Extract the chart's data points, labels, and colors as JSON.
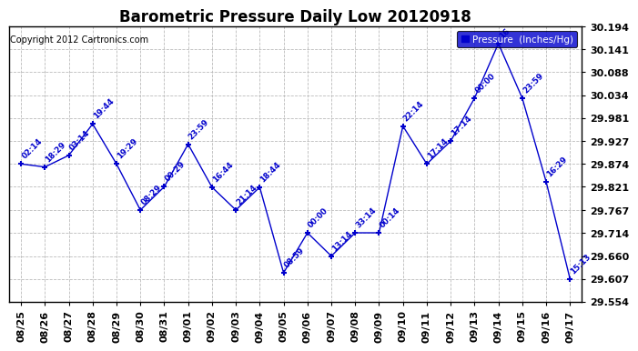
{
  "title": "Barometric Pressure Daily Low 20120918",
  "copyright": "Copyright 2012 Cartronics.com",
  "legend_label": "Pressure  (Inches/Hg)",
  "ylim": [
    29.554,
    30.194
  ],
  "yticks": [
    29.554,
    29.607,
    29.66,
    29.714,
    29.767,
    29.821,
    29.874,
    29.927,
    29.981,
    30.034,
    30.088,
    30.141,
    30.194
  ],
  "dates": [
    "08/25",
    "08/26",
    "08/27",
    "08/28",
    "08/29",
    "08/30",
    "08/31",
    "09/01",
    "09/02",
    "09/03",
    "09/04",
    "09/05",
    "09/06",
    "09/07",
    "09/08",
    "09/09",
    "09/10",
    "09/11",
    "09/12",
    "09/13",
    "09/14",
    "09/15",
    "09/16",
    "09/17"
  ],
  "values": [
    29.874,
    29.867,
    29.894,
    29.967,
    29.874,
    29.767,
    29.821,
    29.92,
    29.82,
    29.767,
    29.82,
    29.621,
    29.714,
    29.66,
    29.714,
    29.714,
    29.962,
    29.874,
    29.927,
    30.027,
    30.154,
    30.027,
    29.833,
    29.607
  ],
  "time_labels": [
    "02:14",
    "18:29",
    "03:14",
    "19:44",
    "19:29",
    "08:29",
    "00:29",
    "23:59",
    "16:44",
    "21:14",
    "18:44",
    "08:59",
    "00:00",
    "13:14",
    "33:14",
    "00:14",
    "22:14",
    "17:14",
    "17:14",
    "00:00",
    "16",
    "23:59",
    "16:29",
    "15:13"
  ],
  "line_color": "#0000cc",
  "bg_color": "#ffffff",
  "plot_bg_color": "#ffffff",
  "grid_color": "#bbbbbb",
  "title_fontsize": 12,
  "tick_fontsize": 8
}
